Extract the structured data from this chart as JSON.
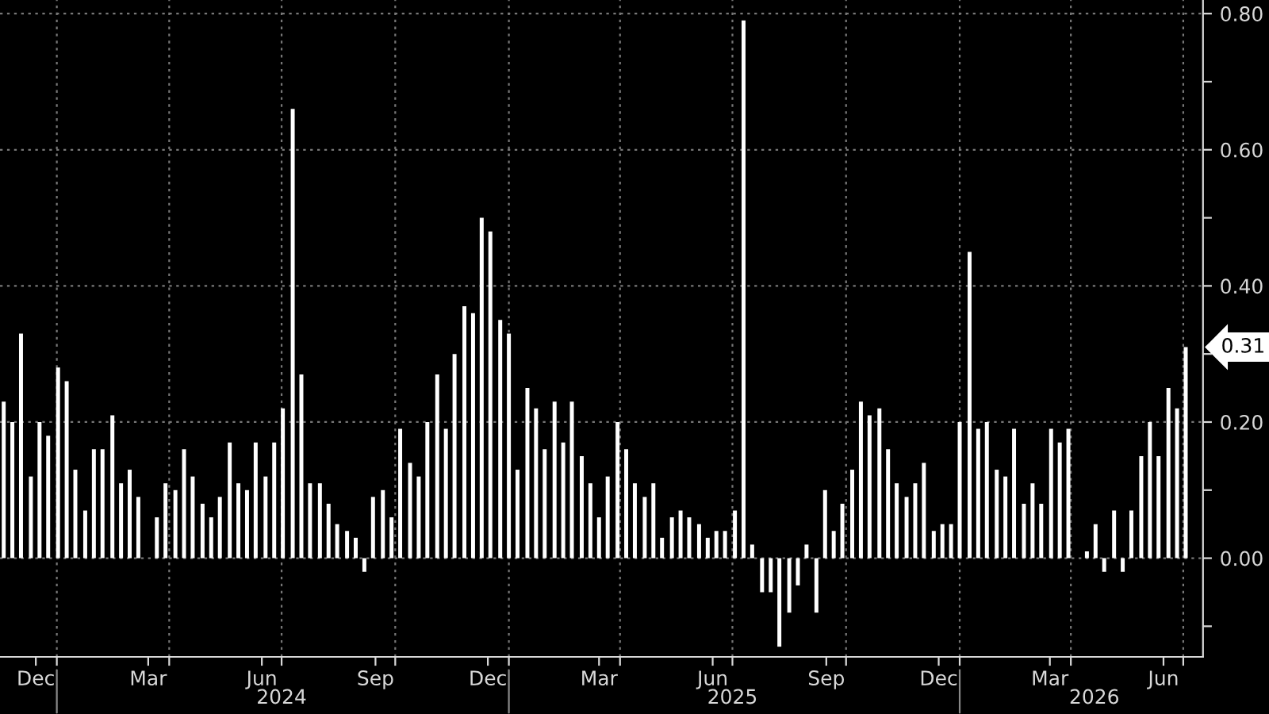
{
  "chart_data": {
    "type": "bar",
    "x": [
      "2023-11-19",
      "2023-11-26",
      "2023-12-03",
      "2023-12-11",
      "2023-12-18",
      "2023-12-25",
      "2024-01-02",
      "2024-01-09",
      "2024-01-16",
      "2024-01-24",
      "2024-01-31",
      "2024-02-07",
      "2024-02-15",
      "2024-02-22",
      "2024-02-29",
      "2024-03-07",
      "2024-03-15",
      "2024-03-22",
      "2024-03-29",
      "2024-04-06",
      "2024-04-13",
      "2024-04-20",
      "2024-04-28",
      "2024-05-05",
      "2024-05-12",
      "2024-05-20",
      "2024-05-27",
      "2024-06-03",
      "2024-06-10",
      "2024-06-18",
      "2024-06-25",
      "2024-07-02",
      "2024-07-10",
      "2024-07-17",
      "2024-07-24",
      "2024-08-01",
      "2024-08-08",
      "2024-08-15",
      "2024-08-23",
      "2024-08-30",
      "2024-09-06",
      "2024-09-13",
      "2024-09-21",
      "2024-09-28",
      "2024-10-05",
      "2024-10-13",
      "2024-10-20",
      "2024-10-27",
      "2024-11-04",
      "2024-11-11",
      "2024-11-18",
      "2024-11-26",
      "2024-12-03",
      "2024-12-10",
      "2024-12-17",
      "2024-12-25",
      "2025-01-01",
      "2025-01-08",
      "2025-01-16",
      "2025-01-23",
      "2025-01-30",
      "2025-02-07",
      "2025-02-14",
      "2025-02-21",
      "2025-03-01",
      "2025-03-08",
      "2025-03-15",
      "2025-03-22",
      "2025-03-30",
      "2025-04-06",
      "2025-04-13",
      "2025-04-21",
      "2025-04-28",
      "2025-05-05",
      "2025-05-13",
      "2025-05-20",
      "2025-05-27",
      "2025-06-04",
      "2025-06-11",
      "2025-06-18",
      "2025-06-25",
      "2025-07-03",
      "2025-07-10",
      "2025-07-17",
      "2025-07-25",
      "2025-08-01",
      "2025-08-08",
      "2025-08-16",
      "2025-08-23",
      "2025-08-30",
      "2025-09-07",
      "2025-09-14",
      "2025-09-21",
      "2025-09-28",
      "2025-10-06",
      "2025-10-13",
      "2025-10-20",
      "2025-10-28",
      "2025-11-04",
      "2025-11-11",
      "2025-11-19",
      "2025-11-26",
      "2025-12-03",
      "2025-12-11",
      "2025-12-18",
      "2025-12-25",
      "2026-01-01",
      "2026-01-09",
      "2026-01-16",
      "2026-01-23",
      "2026-01-31",
      "2026-02-07",
      "2026-02-14",
      "2026-02-22",
      "2026-03-01",
      "2026-03-08",
      "2026-03-16",
      "2026-03-23",
      "2026-03-30",
      "2026-04-06",
      "2026-04-14",
      "2026-04-21",
      "2026-04-28",
      "2026-05-06",
      "2026-05-13",
      "2026-05-20",
      "2026-05-28",
      "2026-06-04",
      "2026-06-11",
      "2026-06-19",
      "2026-06-26",
      "2026-07-03"
    ],
    "values": [
      0.23,
      0.2,
      0.33,
      0.12,
      0.2,
      0.18,
      0.28,
      0.26,
      0.13,
      0.07,
      0.16,
      0.16,
      0.21,
      0.11,
      0.13,
      0.09,
      0.0,
      0.06,
      0.11,
      0.1,
      0.16,
      0.12,
      0.08,
      0.06,
      0.09,
      0.17,
      0.11,
      0.1,
      0.17,
      0.12,
      0.17,
      0.22,
      0.66,
      0.27,
      0.11,
      0.11,
      0.08,
      0.05,
      0.04,
      0.03,
      -0.02,
      0.09,
      0.1,
      0.06,
      0.19,
      0.14,
      0.12,
      0.2,
      0.27,
      0.19,
      0.3,
      0.37,
      0.36,
      0.5,
      0.48,
      0.35,
      0.33,
      0.13,
      0.25,
      0.22,
      0.16,
      0.23,
      0.17,
      0.23,
      0.15,
      0.11,
      0.06,
      0.12,
      0.2,
      0.16,
      0.11,
      0.09,
      0.11,
      0.03,
      0.06,
      0.07,
      0.06,
      0.05,
      0.03,
      0.04,
      0.04,
      0.07,
      0.79,
      0.02,
      -0.05,
      -0.05,
      -0.13,
      -0.08,
      -0.04,
      0.02,
      -0.08,
      0.1,
      0.04,
      0.08,
      0.13,
      0.23,
      0.21,
      0.22,
      0.16,
      0.11,
      0.09,
      0.11,
      0.14,
      0.04,
      0.05,
      0.05,
      0.2,
      0.45,
      0.19,
      0.2,
      0.13,
      0.12,
      0.19,
      0.08,
      0.11,
      0.08,
      0.19,
      0.17,
      0.19,
      0.0,
      0.01,
      0.05,
      -0.02,
      0.07,
      -0.02,
      0.07,
      0.15,
      0.2,
      0.15,
      0.25,
      0.22,
      0.31
    ],
    "color": "#ffffff",
    "xlim": [
      "2023-11-16",
      "2026-07-17"
    ],
    "xticks": [
      {
        "value": "2023-12-15",
        "label": "Dec"
      },
      {
        "value": "2024-01-01",
        "label": null
      },
      {
        "value": "2024-03-15",
        "label": "Mar"
      },
      {
        "value": "2024-04-01",
        "label": null
      },
      {
        "value": "2024-06-15",
        "label": "Jun"
      },
      {
        "value": "2024-07-01",
        "label": null
      },
      {
        "value": "2024-09-15",
        "label": "Sep"
      },
      {
        "value": "2024-10-01",
        "label": null
      },
      {
        "value": "2024-12-15",
        "label": "Dec"
      },
      {
        "value": "2025-01-01",
        "label": null
      },
      {
        "value": "2025-03-15",
        "label": "Mar"
      },
      {
        "value": "2025-04-01",
        "label": null
      },
      {
        "value": "2025-06-15",
        "label": "Jun"
      },
      {
        "value": "2025-07-01",
        "label": null
      },
      {
        "value": "2025-09-15",
        "label": "Sep"
      },
      {
        "value": "2025-10-01",
        "label": null
      },
      {
        "value": "2025-12-15",
        "label": "Dec"
      },
      {
        "value": "2026-01-01",
        "label": null
      },
      {
        "value": "2026-03-15",
        "label": "Mar"
      },
      {
        "value": "2026-04-01",
        "label": null
      },
      {
        "value": "2026-06-15",
        "label": "Jun"
      },
      {
        "value": "2026-07-01",
        "label": null
      }
    ],
    "x2lim": [
      "2023-11-16",
      "2026-07-17"
    ],
    "x2ticks": [
      {
        "value": "2024-07-01",
        "label": "2024"
      },
      {
        "value": "2025-07-01",
        "label": "2025"
      },
      {
        "value": "2026-04-20",
        "label": "2026"
      }
    ],
    "ylim": [
      -0.145,
      0.82
    ],
    "yticks": [
      {
        "value": -0.1,
        "label": null
      },
      {
        "value": 0,
        "label": "0.00"
      },
      {
        "value": 0.1,
        "label": null
      },
      {
        "value": 0.2,
        "label": "0.20"
      },
      {
        "value": 0.3,
        "label": null
      },
      {
        "value": 0.4,
        "label": "0.40"
      },
      {
        "value": 0.5,
        "label": null
      },
      {
        "value": 0.6,
        "label": "0.60"
      },
      {
        "value": 0.7,
        "label": null
      },
      {
        "value": 0.8,
        "label": "0.80"
      }
    ],
    "grid": true,
    "annotations": [
      {
        "text": "0.31",
        "x": "2026-07-03",
        "y": 0.31
      }
    ]
  }
}
